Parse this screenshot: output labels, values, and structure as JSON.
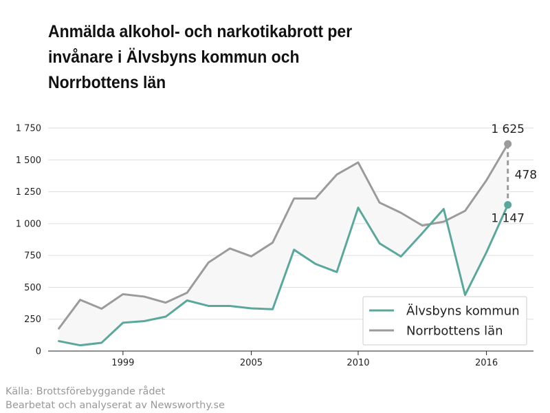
{
  "title": "Anmälda alkohol- och narkotikabrott per invånare i Älvsbyns kommun och Norrbottens län",
  "source": {
    "line1": "Källa: Brottsförebyggande rådet",
    "line2": "Bearbetat och analyserat av Newsworthy.se"
  },
  "colors": {
    "series1": "#5aa89b",
    "series2": "#9b9b9b",
    "fill": "#f7f7f7",
    "grid": "#dddddd",
    "axis": "#222222"
  },
  "chart_data": {
    "type": "line",
    "title": "Anmälda alkohol- och narkotikabrott per invånare i Älvsbyns kommun och Norrbottens län",
    "xlabel": "",
    "ylabel": "",
    "x": [
      1996,
      1997,
      1998,
      1999,
      2000,
      2001,
      2002,
      2003,
      2004,
      2005,
      2006,
      2007,
      2008,
      2009,
      2010,
      2011,
      2012,
      2013,
      2014,
      2015,
      2016,
      2017
    ],
    "xlim": [
      1995.5,
      2018.2
    ],
    "ylim": [
      0,
      1750
    ],
    "xticks": [
      {
        "value": 1999,
        "label": "1999"
      },
      {
        "value": 2005,
        "label": "2005"
      },
      {
        "value": 2010,
        "label": "2010"
      },
      {
        "value": 2016,
        "label": "2016"
      }
    ],
    "yticks": [
      {
        "value": 0,
        "label": "0"
      },
      {
        "value": 250,
        "label": "250"
      },
      {
        "value": 500,
        "label": "500"
      },
      {
        "value": 750,
        "label": "750"
      },
      {
        "value": 1000,
        "label": "1 000"
      },
      {
        "value": 1250,
        "label": "1 250"
      },
      {
        "value": 1500,
        "label": "1 500"
      },
      {
        "value": 1750,
        "label": "1 750"
      }
    ],
    "grid": true,
    "legend_position": "bottom-right",
    "series": [
      {
        "name": "Älvsbyns kommun",
        "values": [
          78,
          45,
          65,
          222,
          235,
          270,
          397,
          354,
          354,
          335,
          328,
          795,
          684,
          620,
          1125,
          845,
          742,
          925,
          1115,
          440,
          775,
          1147
        ]
      },
      {
        "name": "Norrbottens län",
        "values": [
          177,
          402,
          332,
          446,
          427,
          380,
          458,
          695,
          805,
          743,
          851,
          1197,
          1197,
          1385,
          1480,
          1165,
          1085,
          985,
          1015,
          1100,
          1340,
          1625
        ]
      }
    ],
    "annotations": {
      "end_value_series2": "1 625",
      "end_value_series1": "1 147",
      "difference": "478"
    }
  }
}
